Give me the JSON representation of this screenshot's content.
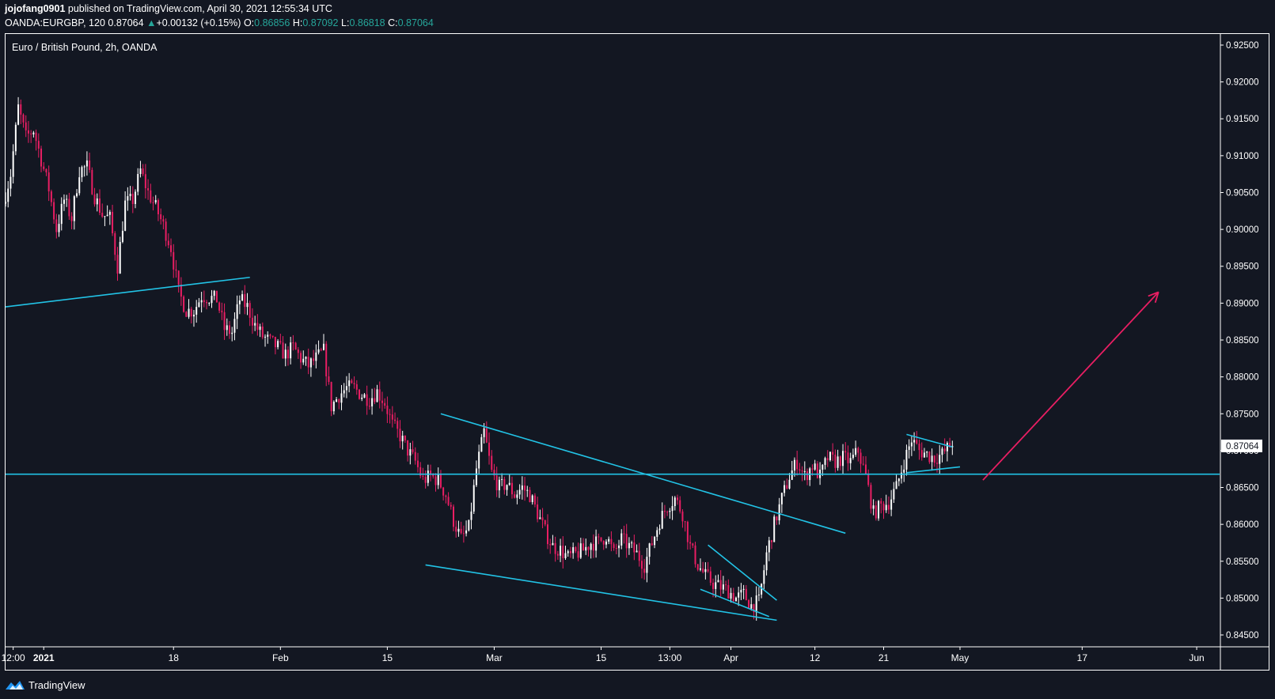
{
  "header": {
    "author": "jojofang0901",
    "published_text": "published on TradingView.com, April 30, 2021 12:55:34 UTC",
    "symbol": "OANDA:EURGBP, 120",
    "last": "0.87064",
    "change_arrow": "▲",
    "change": "+0.00132 (+0.15%)",
    "o_label": "O:",
    "o_value": "0.86856",
    "h_label": "H:",
    "h_value": "0.87092",
    "l_label": "L:",
    "l_value": "0.86818",
    "c_label": "C:",
    "c_value": "0.87064"
  },
  "footer": {
    "brand": "TradingView",
    "logo_icon": "tradingview-logo-icon"
  },
  "colors": {
    "background": "#131722",
    "text": "#ffffff",
    "up_candle": "#ffffff",
    "down_candle": "#e91e63",
    "trendline": "#22c3e6",
    "arrow": "#e91e63",
    "price_label_bg": "#ffffff",
    "price_label_text": "#131722"
  },
  "chart_data": {
    "type": "candlestick",
    "title": "Euro / British Pound, 2h, OANDA",
    "y_axis": {
      "ticks": [
        "0.92500",
        "0.92000",
        "0.91500",
        "0.91000",
        "0.90500",
        "0.90000",
        "0.89500",
        "0.89000",
        "0.88500",
        "0.88000",
        "0.87500",
        "0.87000",
        "0.86500",
        "0.86000",
        "0.85500",
        "0.85000",
        "0.84500"
      ],
      "ylim": [
        0.8435,
        0.9265
      ]
    },
    "x_axis": {
      "ticks": [
        {
          "label": "12:00",
          "date": "2020-12-28"
        },
        {
          "label": "2021",
          "date": "2021-01-01",
          "bold": true
        },
        {
          "label": "18",
          "date": "2021-01-18"
        },
        {
          "label": "Feb",
          "date": "2021-02-01"
        },
        {
          "label": "15",
          "date": "2021-02-15"
        },
        {
          "label": "Mar",
          "date": "2021-03-01"
        },
        {
          "label": "15",
          "date": "2021-03-15"
        },
        {
          "label": "13:00",
          "date": "2021-03-24"
        },
        {
          "label": "Apr",
          "date": "2021-04-01"
        },
        {
          "label": "12",
          "date": "2021-04-12"
        },
        {
          "label": "21",
          "date": "2021-04-21"
        },
        {
          "label": "May",
          "date": "2021-05-01"
        },
        {
          "label": "17",
          "date": "2021-05-17"
        },
        {
          "label": "Jun",
          "date": "2021-06-01"
        }
      ],
      "xlim": [
        "2020-12-27",
        "2021-06-04"
      ]
    },
    "current_price": 0.87064,
    "price_path": [
      [
        "2020-12-27",
        0.9035
      ],
      [
        "2020-12-28",
        0.9075
      ],
      [
        "2020-12-29",
        0.9165
      ],
      [
        "2020-12-30",
        0.9125
      ],
      [
        "2020-12-31",
        0.9135
      ],
      [
        "2021-01-02",
        0.9055
      ],
      [
        "2021-01-03",
        0.9
      ],
      [
        "2021-01-04",
        0.904
      ],
      [
        "2021-01-05",
        0.9015
      ],
      [
        "2021-01-06",
        0.908
      ],
      [
        "2021-01-07",
        0.9085
      ],
      [
        "2021-01-08",
        0.9045
      ],
      [
        "2021-01-09",
        0.902
      ],
      [
        "2021-01-10",
        0.9015
      ],
      [
        "2021-01-11",
        0.895
      ],
      [
        "2021-01-12",
        0.9035
      ],
      [
        "2021-01-13",
        0.904
      ],
      [
        "2021-01-14",
        0.908
      ],
      [
        "2021-01-15",
        0.905
      ],
      [
        "2021-01-16",
        0.903
      ],
      [
        "2021-01-17",
        0.9005
      ],
      [
        "2021-01-18",
        0.8975
      ],
      [
        "2021-01-19",
        0.8915
      ],
      [
        "2021-01-20",
        0.889
      ],
      [
        "2021-01-21",
        0.889
      ],
      [
        "2021-01-22",
        0.891
      ],
      [
        "2021-01-24",
        0.8905
      ],
      [
        "2021-01-25",
        0.8865
      ],
      [
        "2021-01-26",
        0.886
      ],
      [
        "2021-01-27",
        0.8905
      ],
      [
        "2021-01-28",
        0.8895
      ],
      [
        "2021-01-29",
        0.887
      ],
      [
        "2021-01-30",
        0.8855
      ],
      [
        "2021-02-01",
        0.884
      ],
      [
        "2021-02-02",
        0.883
      ],
      [
        "2021-02-03",
        0.884
      ],
      [
        "2021-02-04",
        0.8825
      ],
      [
        "2021-02-05",
        0.8815
      ],
      [
        "2021-02-06",
        0.8825
      ],
      [
        "2021-02-07",
        0.8835
      ],
      [
        "2021-02-08",
        0.876
      ],
      [
        "2021-02-09",
        0.8775
      ],
      [
        "2021-02-10",
        0.8785
      ],
      [
        "2021-02-11",
        0.8785
      ],
      [
        "2021-02-12",
        0.8775
      ],
      [
        "2021-02-13",
        0.877
      ],
      [
        "2021-02-14",
        0.878
      ],
      [
        "2021-02-15",
        0.8765
      ],
      [
        "2021-02-16",
        0.8735
      ],
      [
        "2021-02-17",
        0.872
      ],
      [
        "2021-02-18",
        0.87
      ],
      [
        "2021-02-19",
        0.8685
      ],
      [
        "2021-02-20",
        0.866
      ],
      [
        "2021-02-21",
        0.8665
      ],
      [
        "2021-02-22",
        0.866
      ],
      [
        "2021-02-23",
        0.864
      ],
      [
        "2021-02-24",
        0.8605
      ],
      [
        "2021-02-25",
        0.858
      ],
      [
        "2021-02-26",
        0.8595
      ],
      [
        "2021-02-27",
        0.8675
      ],
      [
        "2021-02-28",
        0.8725
      ],
      [
        "2021-03-01",
        0.867
      ],
      [
        "2021-03-02",
        0.865
      ],
      [
        "2021-03-03",
        0.8655
      ],
      [
        "2021-03-04",
        0.864
      ],
      [
        "2021-03-05",
        0.865
      ],
      [
        "2021-03-06",
        0.864
      ],
      [
        "2021-03-07",
        0.8615
      ],
      [
        "2021-03-08",
        0.859
      ],
      [
        "2021-03-09",
        0.857
      ],
      [
        "2021-03-10",
        0.8565
      ],
      [
        "2021-03-11",
        0.8555
      ],
      [
        "2021-03-12",
        0.856
      ],
      [
        "2021-03-13",
        0.8565
      ],
      [
        "2021-03-14",
        0.8575
      ],
      [
        "2021-03-15",
        0.8575
      ],
      [
        "2021-03-16",
        0.8585
      ],
      [
        "2021-03-17",
        0.856
      ],
      [
        "2021-03-18",
        0.858
      ],
      [
        "2021-03-19",
        0.857
      ],
      [
        "2021-03-20",
        0.856
      ],
      [
        "2021-03-21",
        0.8545
      ],
      [
        "2021-03-22",
        0.8575
      ],
      [
        "2021-03-23",
        0.8605
      ],
      [
        "2021-03-24",
        0.8625
      ],
      [
        "2021-03-25",
        0.8635
      ],
      [
        "2021-03-26",
        0.8615
      ],
      [
        "2021-03-27",
        0.857
      ],
      [
        "2021-03-28",
        0.8545
      ],
      [
        "2021-03-29",
        0.853
      ],
      [
        "2021-03-30",
        0.852
      ],
      [
        "2021-03-31",
        0.8515
      ],
      [
        "2021-04-01",
        0.851
      ],
      [
        "2021-04-02",
        0.85
      ],
      [
        "2021-04-03",
        0.8505
      ],
      [
        "2021-04-04",
        0.849
      ],
      [
        "2021-04-05",
        0.8495
      ],
      [
        "2021-04-06",
        0.856
      ],
      [
        "2021-04-07",
        0.86
      ],
      [
        "2021-04-08",
        0.8635
      ],
      [
        "2021-04-09",
        0.8665
      ],
      [
        "2021-04-10",
        0.8685
      ],
      [
        "2021-04-11",
        0.8665
      ],
      [
        "2021-04-12",
        0.868
      ],
      [
        "2021-04-13",
        0.8665
      ],
      [
        "2021-04-14",
        0.869
      ],
      [
        "2021-04-15",
        0.8685
      ],
      [
        "2021-04-16",
        0.869
      ],
      [
        "2021-04-17",
        0.8685
      ],
      [
        "2021-04-18",
        0.87
      ],
      [
        "2021-04-19",
        0.8665
      ],
      [
        "2021-04-20",
        0.8615
      ],
      [
        "2021-04-21",
        0.8625
      ],
      [
        "2021-04-22",
        0.863
      ],
      [
        "2021-04-23",
        0.865
      ],
      [
        "2021-04-24",
        0.8685
      ],
      [
        "2021-04-25",
        0.8715
      ],
      [
        "2021-04-26",
        0.87
      ],
      [
        "2021-04-27",
        0.8695
      ],
      [
        "2021-04-28",
        0.869
      ],
      [
        "2021-04-29",
        0.8695
      ],
      [
        "2021-04-30",
        0.87064
      ]
    ],
    "drawings": [
      {
        "type": "trendline",
        "color": "#22c3e6",
        "from": [
          "2020-12-27",
          0.8895
        ],
        "to": [
          "2021-01-28",
          0.8935
        ]
      },
      {
        "type": "horizontal",
        "color": "#22c3e6",
        "value": 0.8668
      },
      {
        "type": "trendline",
        "color": "#22c3e6",
        "from": [
          "2021-02-22",
          0.875
        ],
        "to": [
          "2021-04-16",
          0.8588
        ]
      },
      {
        "type": "trendline",
        "color": "#22c3e6",
        "from": [
          "2021-02-20",
          0.8545
        ],
        "to": [
          "2021-04-07",
          0.847
        ]
      },
      {
        "type": "trendline",
        "color": "#22c3e6",
        "from": [
          "2021-03-29",
          0.8572
        ],
        "to": [
          "2021-04-07",
          0.8497
        ]
      },
      {
        "type": "trendline",
        "color": "#22c3e6",
        "from": [
          "2021-03-28",
          0.8512
        ],
        "to": [
          "2021-04-06",
          0.8475
        ]
      },
      {
        "type": "trendline",
        "color": "#22c3e6",
        "from": [
          "2021-04-24",
          0.8722
        ],
        "to": [
          "2021-04-30",
          0.8705
        ]
      },
      {
        "type": "trendline",
        "color": "#22c3e6",
        "from": [
          "2021-04-24",
          0.867
        ],
        "to": [
          "2021-05-01",
          0.8678
        ]
      },
      {
        "type": "arrow",
        "color": "#e91e63",
        "from": [
          "2021-05-04",
          0.866
        ],
        "to": [
          "2021-05-27",
          0.8915
        ]
      }
    ]
  }
}
